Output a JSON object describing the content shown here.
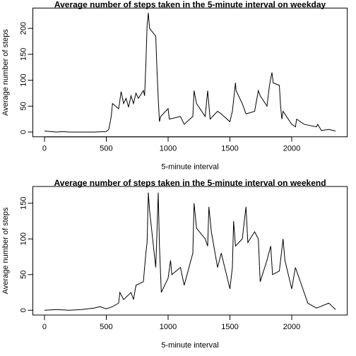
{
  "chart_data": [
    {
      "type": "line",
      "title": "Average number of steps taken in the 5-minute interval on weekday",
      "xlabel": "5-minute interval",
      "ylabel": "Average number of steps",
      "color": "#000000",
      "x": [
        0,
        50,
        100,
        150,
        200,
        300,
        400,
        500,
        520,
        540,
        550,
        600,
        620,
        640,
        660,
        680,
        700,
        720,
        740,
        760,
        800,
        810,
        820,
        830,
        840,
        850,
        900,
        910,
        920,
        930,
        940,
        1000,
        1010,
        1100,
        1130,
        1200,
        1210,
        1230,
        1300,
        1320,
        1340,
        1400,
        1430,
        1500,
        1520,
        1545,
        1550,
        1600,
        1630,
        1700,
        1730,
        1745,
        1800,
        1820,
        1840,
        1850,
        1900,
        1910,
        1920,
        1930,
        2000,
        2030,
        2040,
        2100,
        2200,
        2210,
        2240,
        2300,
        2355
      ],
      "values": [
        2,
        1,
        0,
        1,
        0,
        0,
        0,
        1,
        5,
        30,
        55,
        45,
        78,
        55,
        65,
        48,
        70,
        55,
        75,
        65,
        80,
        70,
        130,
        205,
        230,
        200,
        185,
        120,
        65,
        20,
        30,
        45,
        25,
        30,
        15,
        30,
        80,
        55,
        30,
        80,
        25,
        40,
        35,
        20,
        40,
        95,
        80,
        55,
        35,
        40,
        80,
        70,
        50,
        90,
        115,
        95,
        90,
        50,
        25,
        40,
        15,
        10,
        25,
        15,
        10,
        15,
        3,
        5,
        2
      ],
      "xlim": [
        -94.2,
        2449.2
      ],
      "ylim": [
        -9.2,
        239.2
      ],
      "xticks": [
        0,
        500,
        1000,
        1500,
        2000
      ],
      "yticks": [
        0,
        50,
        100,
        150,
        200
      ]
    },
    {
      "type": "line",
      "title": "Average number of steps taken in the 5-minute interval on weekend",
      "xlabel": "5-minute interval",
      "ylabel": "Average number of steps",
      "color": "#000000",
      "x": [
        0,
        100,
        200,
        300,
        400,
        450,
        500,
        550,
        600,
        610,
        640,
        700,
        720,
        740,
        800,
        820,
        830,
        840,
        850,
        900,
        910,
        920,
        930,
        945,
        1000,
        1020,
        1030,
        1100,
        1130,
        1200,
        1210,
        1230,
        1300,
        1320,
        1330,
        1350,
        1400,
        1430,
        1500,
        1520,
        1530,
        1545,
        1600,
        1630,
        1645,
        1700,
        1730,
        1745,
        1800,
        1830,
        1845,
        1900,
        1930,
        1945,
        2000,
        2030,
        2040,
        2100,
        2130,
        2200,
        2230,
        2300,
        2330,
        2355
      ],
      "values": [
        0,
        1,
        0,
        1,
        3,
        5,
        2,
        5,
        10,
        25,
        15,
        25,
        15,
        35,
        40,
        80,
        95,
        165,
        140,
        60,
        110,
        165,
        90,
        25,
        45,
        70,
        50,
        60,
        35,
        80,
        150,
        115,
        100,
        90,
        145,
        110,
        60,
        80,
        30,
        60,
        125,
        90,
        100,
        145,
        95,
        110,
        100,
        40,
        70,
        90,
        50,
        55,
        100,
        70,
        30,
        60,
        55,
        25,
        10,
        3,
        5,
        10,
        5,
        1
      ],
      "xlim": [
        -94.2,
        2449.2
      ],
      "ylim": [
        -6.7,
        173.5
      ],
      "xticks": [
        0,
        500,
        1000,
        1500,
        2000
      ],
      "yticks": [
        0,
        50,
        100,
        150
      ]
    }
  ]
}
